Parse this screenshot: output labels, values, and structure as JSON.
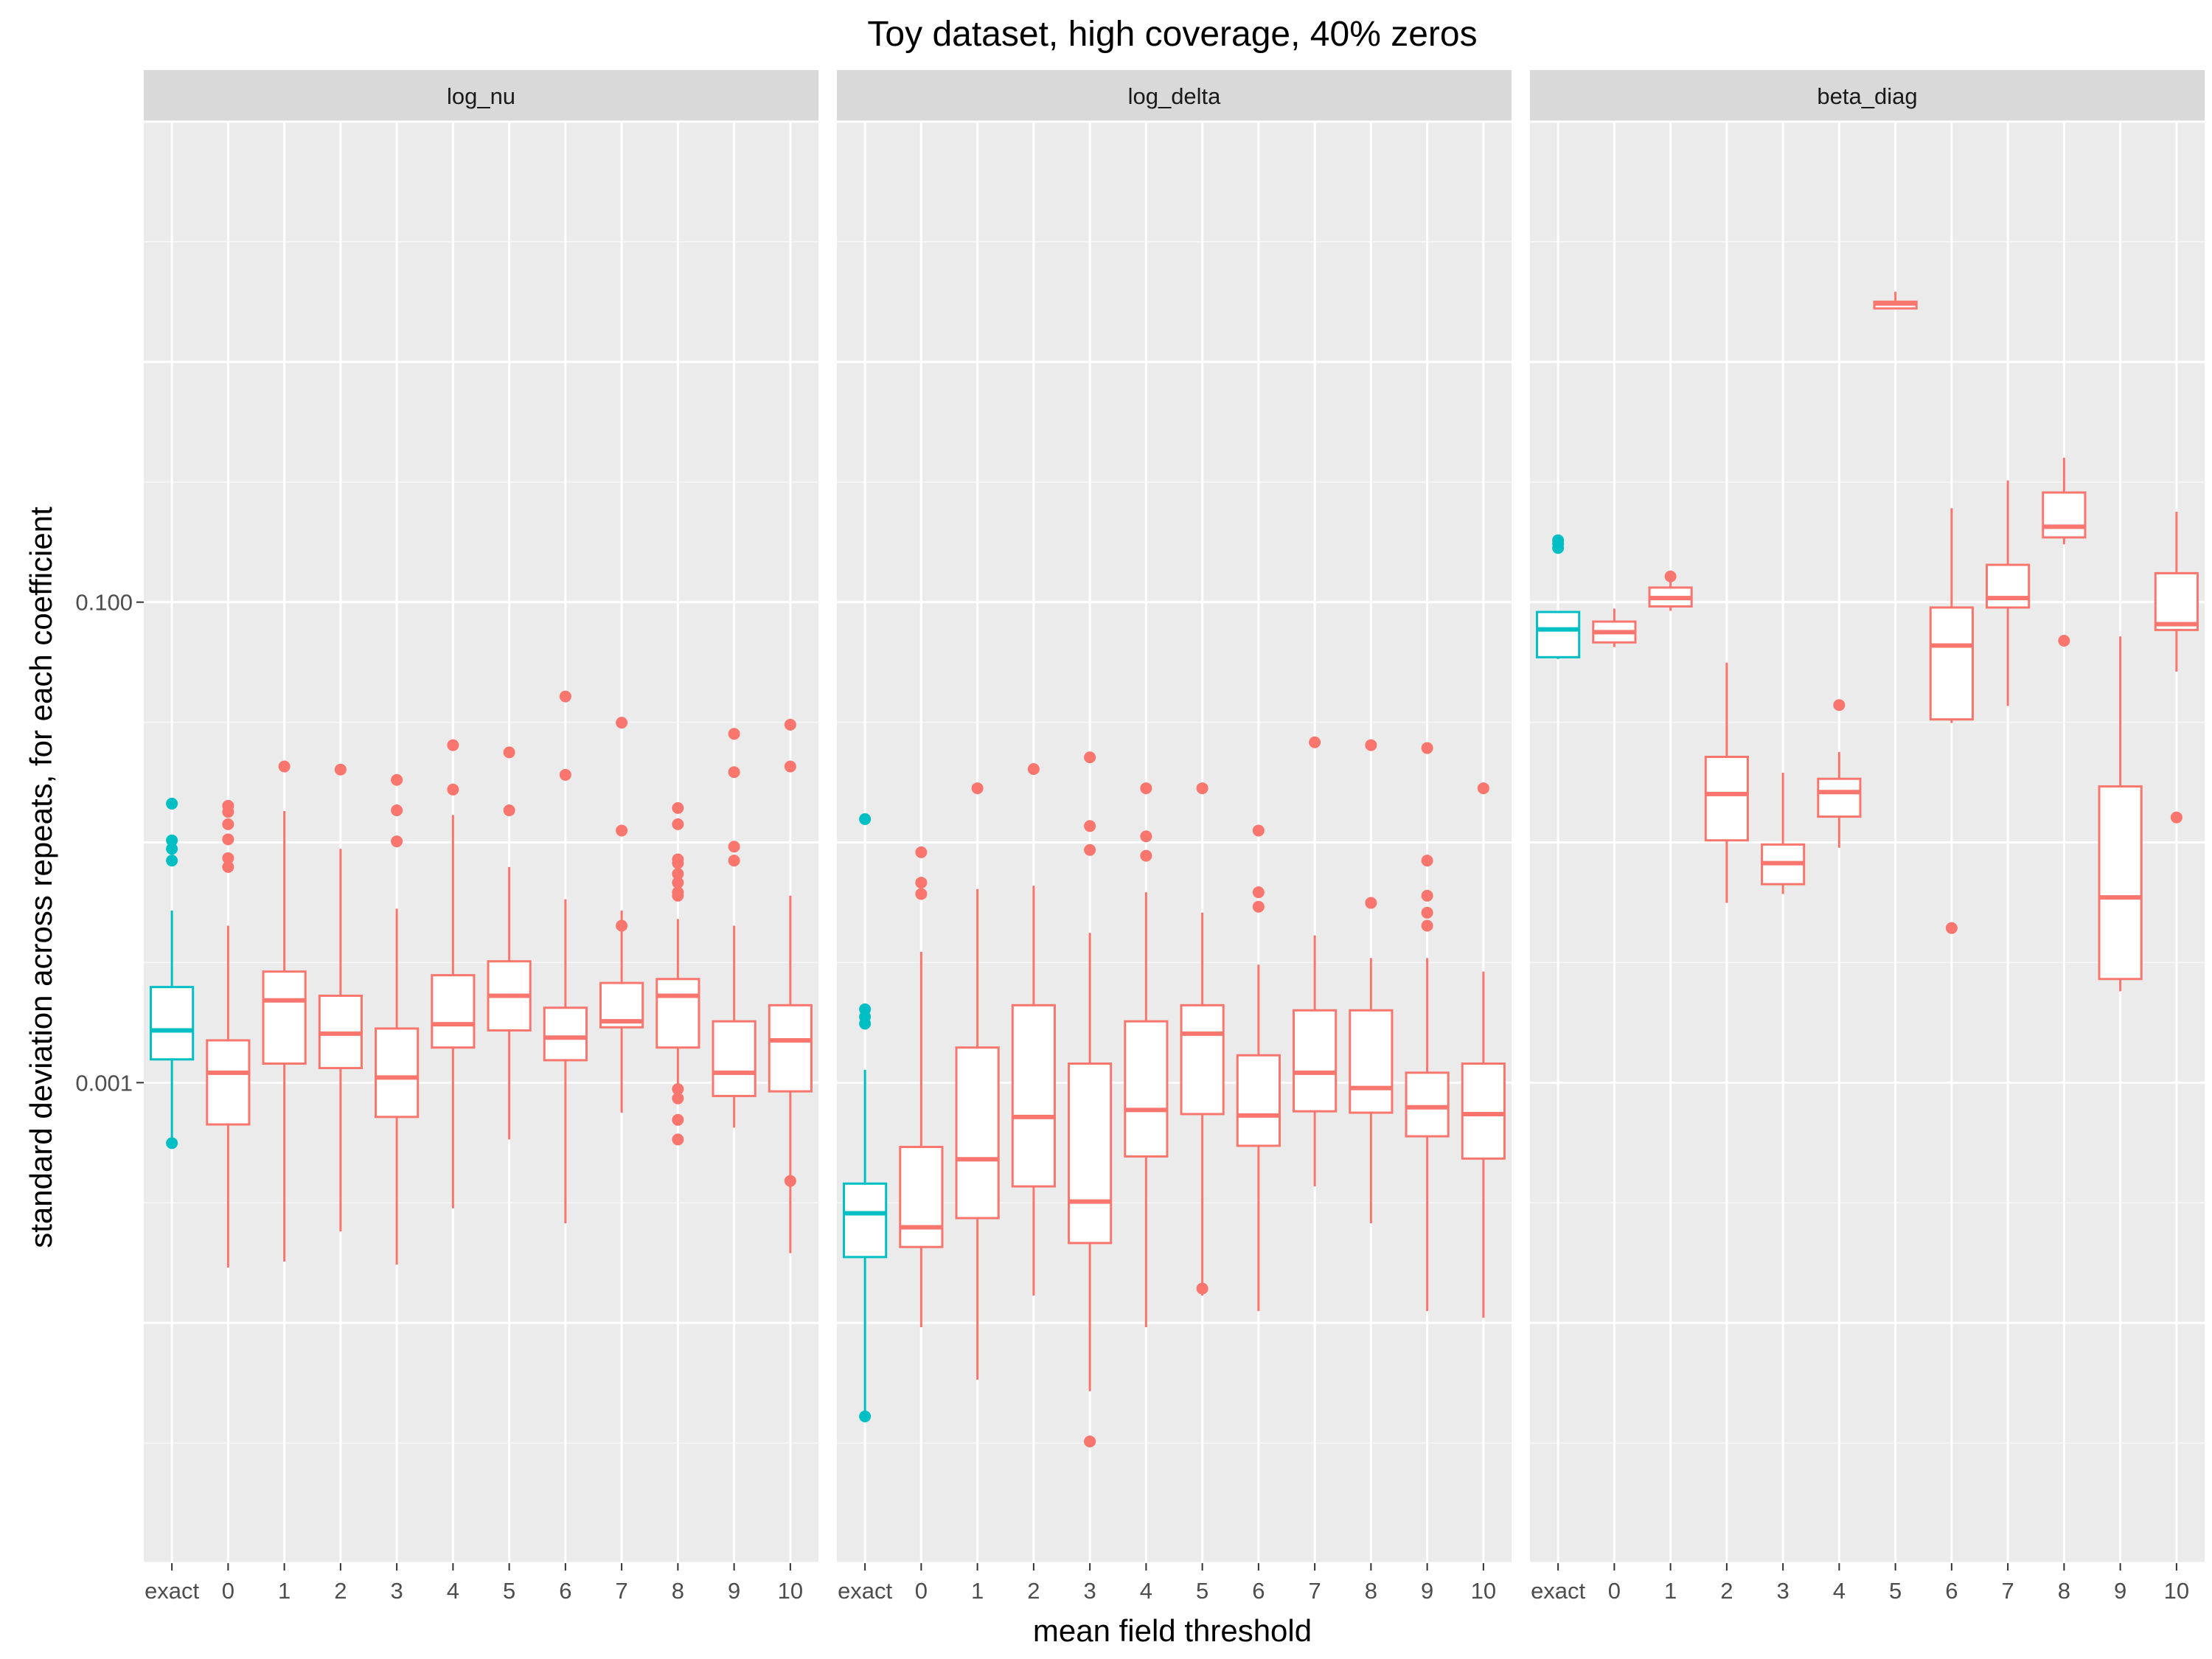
{
  "chart_data": {
    "type": "box",
    "title": "Toy dataset, high coverage, 40% zeros",
    "xlabel": "mean field threshold",
    "ylabel": "standard deviation across repeats, for each coefficient",
    "y_scale": "log10",
    "ylim": [
      1e-05,
      10
    ],
    "y_ticks": [
      0.001,
      0.1
    ],
    "y_tick_labels": [
      "0.001",
      "0.100"
    ],
    "categories": [
      "exact",
      "0",
      "1",
      "2",
      "3",
      "4",
      "5",
      "6",
      "7",
      "8",
      "9",
      "10"
    ],
    "colors": {
      "exact": "#00BFC4",
      "threshold": "#F8766D"
    },
    "grid": true,
    "legend": "none",
    "panels": [
      {
        "name": "log_nu",
        "boxes": [
          {
            "category": "exact",
            "whisker_low": 0.00055,
            "q1": 0.00125,
            "median": 0.00165,
            "q3": 0.0025,
            "whisker_high": 0.0052,
            "outliers": [
              0.0084,
              0.0094,
              0.0102,
              0.0145,
              0.00056
            ]
          },
          {
            "category": "0",
            "whisker_low": 0.00017,
            "q1": 0.00067,
            "median": 0.0011,
            "q3": 0.0015,
            "whisker_high": 0.0045,
            "outliers": [
              0.0079,
              0.0086,
              0.0103,
              0.0119,
              0.0134,
              0.0142
            ]
          },
          {
            "category": "1",
            "whisker_low": 0.00018,
            "q1": 0.0012,
            "median": 0.0022,
            "q3": 0.0029,
            "whisker_high": 0.0135,
            "outliers": [
              0.0207
            ]
          },
          {
            "category": "2",
            "whisker_low": 0.00024,
            "q1": 0.00115,
            "median": 0.0016,
            "q3": 0.0023,
            "whisker_high": 0.0094,
            "outliers": [
              0.0201
            ]
          },
          {
            "category": "3",
            "whisker_low": 0.000175,
            "q1": 0.00072,
            "median": 0.00105,
            "q3": 0.00168,
            "whisker_high": 0.0053,
            "outliers": [
              0.0101,
              0.0136,
              0.0182
            ]
          },
          {
            "category": "4",
            "whisker_low": 0.0003,
            "q1": 0.0014,
            "median": 0.00175,
            "q3": 0.0028,
            "whisker_high": 0.013,
            "outliers": [
              0.0166,
              0.0254
            ]
          },
          {
            "category": "5",
            "whisker_low": 0.00058,
            "q1": 0.00165,
            "median": 0.0023,
            "q3": 0.0032,
            "whisker_high": 0.0079,
            "outliers": [
              0.0136,
              0.0237
            ]
          },
          {
            "category": "6",
            "whisker_low": 0.00026,
            "q1": 0.00124,
            "median": 0.00154,
            "q3": 0.00205,
            "whisker_high": 0.0058,
            "outliers": [
              0.0191,
              0.0405
            ]
          },
          {
            "category": "7",
            "whisker_low": 0.00075,
            "q1": 0.0017,
            "median": 0.0018,
            "q3": 0.0026,
            "whisker_high": 0.0052,
            "outliers": [
              0.0045,
              0.0112,
              0.0315
            ]
          },
          {
            "category": "8",
            "whisker_low": 0.0009,
            "q1": 0.0014,
            "median": 0.0023,
            "q3": 0.0027,
            "whisker_high": 0.0048,
            "outliers": [
              0.00058,
              0.0007,
              0.00086,
              0.00094,
              0.006,
              0.0062,
              0.0068,
              0.0074,
              0.0082,
              0.0085,
              0.0119,
              0.0139
            ]
          },
          {
            "category": "9",
            "whisker_low": 0.00065,
            "q1": 0.00088,
            "median": 0.0011,
            "q3": 0.0018,
            "whisker_high": 0.0045,
            "outliers": [
              0.0084,
              0.0096,
              0.0196,
              0.0283
            ]
          },
          {
            "category": "10",
            "whisker_low": 0.000195,
            "q1": 0.00092,
            "median": 0.0015,
            "q3": 0.0021,
            "whisker_high": 0.006,
            "outliers": [
              0.00039,
              0.0207,
              0.0309
            ]
          }
        ]
      },
      {
        "name": "log_delta",
        "boxes": [
          {
            "category": "exact",
            "whisker_low": 4.1e-05,
            "q1": 0.000188,
            "median": 0.000286,
            "q3": 0.00038,
            "whisker_high": 0.00113,
            "outliers": [
              4.08e-05,
              0.00176,
              0.00188,
              0.00202,
              0.0125
            ]
          },
          {
            "category": "0",
            "whisker_low": 9.6e-05,
            "q1": 0.000207,
            "median": 0.00025,
            "q3": 0.00054,
            "whisker_high": 0.0035,
            "outliers": [
              0.0061,
              0.0068,
              0.0091
            ]
          },
          {
            "category": "1",
            "whisker_low": 5.8e-05,
            "q1": 0.000273,
            "median": 0.00048,
            "q3": 0.0014,
            "whisker_high": 0.0064,
            "outliers": [
              0.0168
            ]
          },
          {
            "category": "2",
            "whisker_low": 0.00013,
            "q1": 0.00037,
            "median": 0.00072,
            "q3": 0.0021,
            "whisker_high": 0.0066,
            "outliers": [
              0.0202
            ]
          },
          {
            "category": "3",
            "whisker_low": 5.2e-05,
            "q1": 0.000215,
            "median": 0.00032,
            "q3": 0.0012,
            "whisker_high": 0.0042,
            "outliers": [
              3.21e-05,
              0.0093,
              0.0117,
              0.0226
            ]
          },
          {
            "category": "4",
            "whisker_low": 9.6e-05,
            "q1": 0.000493,
            "median": 0.00077,
            "q3": 0.0018,
            "whisker_high": 0.0062,
            "outliers": [
              0.0088,
              0.0106,
              0.0168
            ]
          },
          {
            "category": "5",
            "whisker_low": 0.00013,
            "q1": 0.00074,
            "median": 0.0016,
            "q3": 0.0021,
            "whisker_high": 0.0051,
            "outliers": [
              0.000139,
              0.0168
            ]
          },
          {
            "category": "6",
            "whisker_low": 0.000112,
            "q1": 0.000546,
            "median": 0.00073,
            "q3": 0.0013,
            "whisker_high": 0.0031,
            "outliers": [
              0.0054,
              0.0062,
              0.0112
            ]
          },
          {
            "category": "7",
            "whisker_low": 0.00037,
            "q1": 0.00076,
            "median": 0.0011,
            "q3": 0.002,
            "whisker_high": 0.0041,
            "outliers": [
              0.0261
            ]
          },
          {
            "category": "8",
            "whisker_low": 0.00026,
            "q1": 0.00075,
            "median": 0.00095,
            "q3": 0.002,
            "whisker_high": 0.0033,
            "outliers": [
              0.0056,
              0.0254
            ]
          },
          {
            "category": "9",
            "whisker_low": 0.000112,
            "q1": 0.000598,
            "median": 0.00079,
            "q3": 0.0011,
            "whisker_high": 0.0033,
            "outliers": [
              0.0045,
              0.0051,
              0.006,
              0.0084,
              0.0247
            ]
          },
          {
            "category": "10",
            "whisker_low": 0.000105,
            "q1": 0.000483,
            "median": 0.00074,
            "q3": 0.0012,
            "whisker_high": 0.0029,
            "outliers": [
              0.0168
            ]
          }
        ]
      },
      {
        "name": "beta_diag",
        "boxes": [
          {
            "category": "exact",
            "whisker_low": 0.058,
            "q1": 0.059,
            "median": 0.077,
            "q3": 0.091,
            "whisker_high": 0.092,
            "outliers": [
              0.168,
              0.175,
              0.181
            ]
          },
          {
            "category": "0",
            "whisker_low": 0.065,
            "q1": 0.068,
            "median": 0.075,
            "q3": 0.083,
            "whisker_high": 0.094,
            "outliers": []
          },
          {
            "category": "1",
            "whisker_low": 0.092,
            "q1": 0.096,
            "median": 0.104,
            "q3": 0.115,
            "whisker_high": 0.129,
            "outliers": [
              0.128
            ]
          },
          {
            "category": "2",
            "whisker_low": 0.0056,
            "q1": 0.0102,
            "median": 0.0159,
            "q3": 0.0227,
            "whisker_high": 0.056,
            "outliers": []
          },
          {
            "category": "3",
            "whisker_low": 0.0061,
            "q1": 0.0067,
            "median": 0.0082,
            "q3": 0.0098,
            "whisker_high": 0.0195,
            "outliers": []
          },
          {
            "category": "4",
            "whisker_low": 0.0095,
            "q1": 0.0128,
            "median": 0.0162,
            "q3": 0.0184,
            "whisker_high": 0.0238,
            "outliers": [
              0.0373
            ]
          },
          {
            "category": "5",
            "whisker_low": 1.66,
            "q1": 1.67,
            "median": 1.75,
            "q3": 1.78,
            "whisker_high": 1.96,
            "outliers": []
          },
          {
            "category": "6",
            "whisker_low": 0.0314,
            "q1": 0.0325,
            "median": 0.066,
            "q3": 0.095,
            "whisker_high": 0.246,
            "outliers": [
              0.0044
            ]
          },
          {
            "category": "7",
            "whisker_low": 0.037,
            "q1": 0.095,
            "median": 0.104,
            "q3": 0.143,
            "whisker_high": 0.321,
            "outliers": []
          },
          {
            "category": "8",
            "whisker_low": 0.174,
            "q1": 0.186,
            "median": 0.206,
            "q3": 0.286,
            "whisker_high": 0.399,
            "outliers": [
              0.0691
            ]
          },
          {
            "category": "9",
            "whisker_low": 0.0024,
            "q1": 0.0027,
            "median": 0.0059,
            "q3": 0.0171,
            "whisker_high": 0.072,
            "outliers": []
          },
          {
            "category": "10",
            "whisker_low": 0.0514,
            "q1": 0.0766,
            "median": 0.081,
            "q3": 0.132,
            "whisker_high": 0.238,
            "outliers": [
              0.0127
            ]
          }
        ]
      }
    ]
  }
}
